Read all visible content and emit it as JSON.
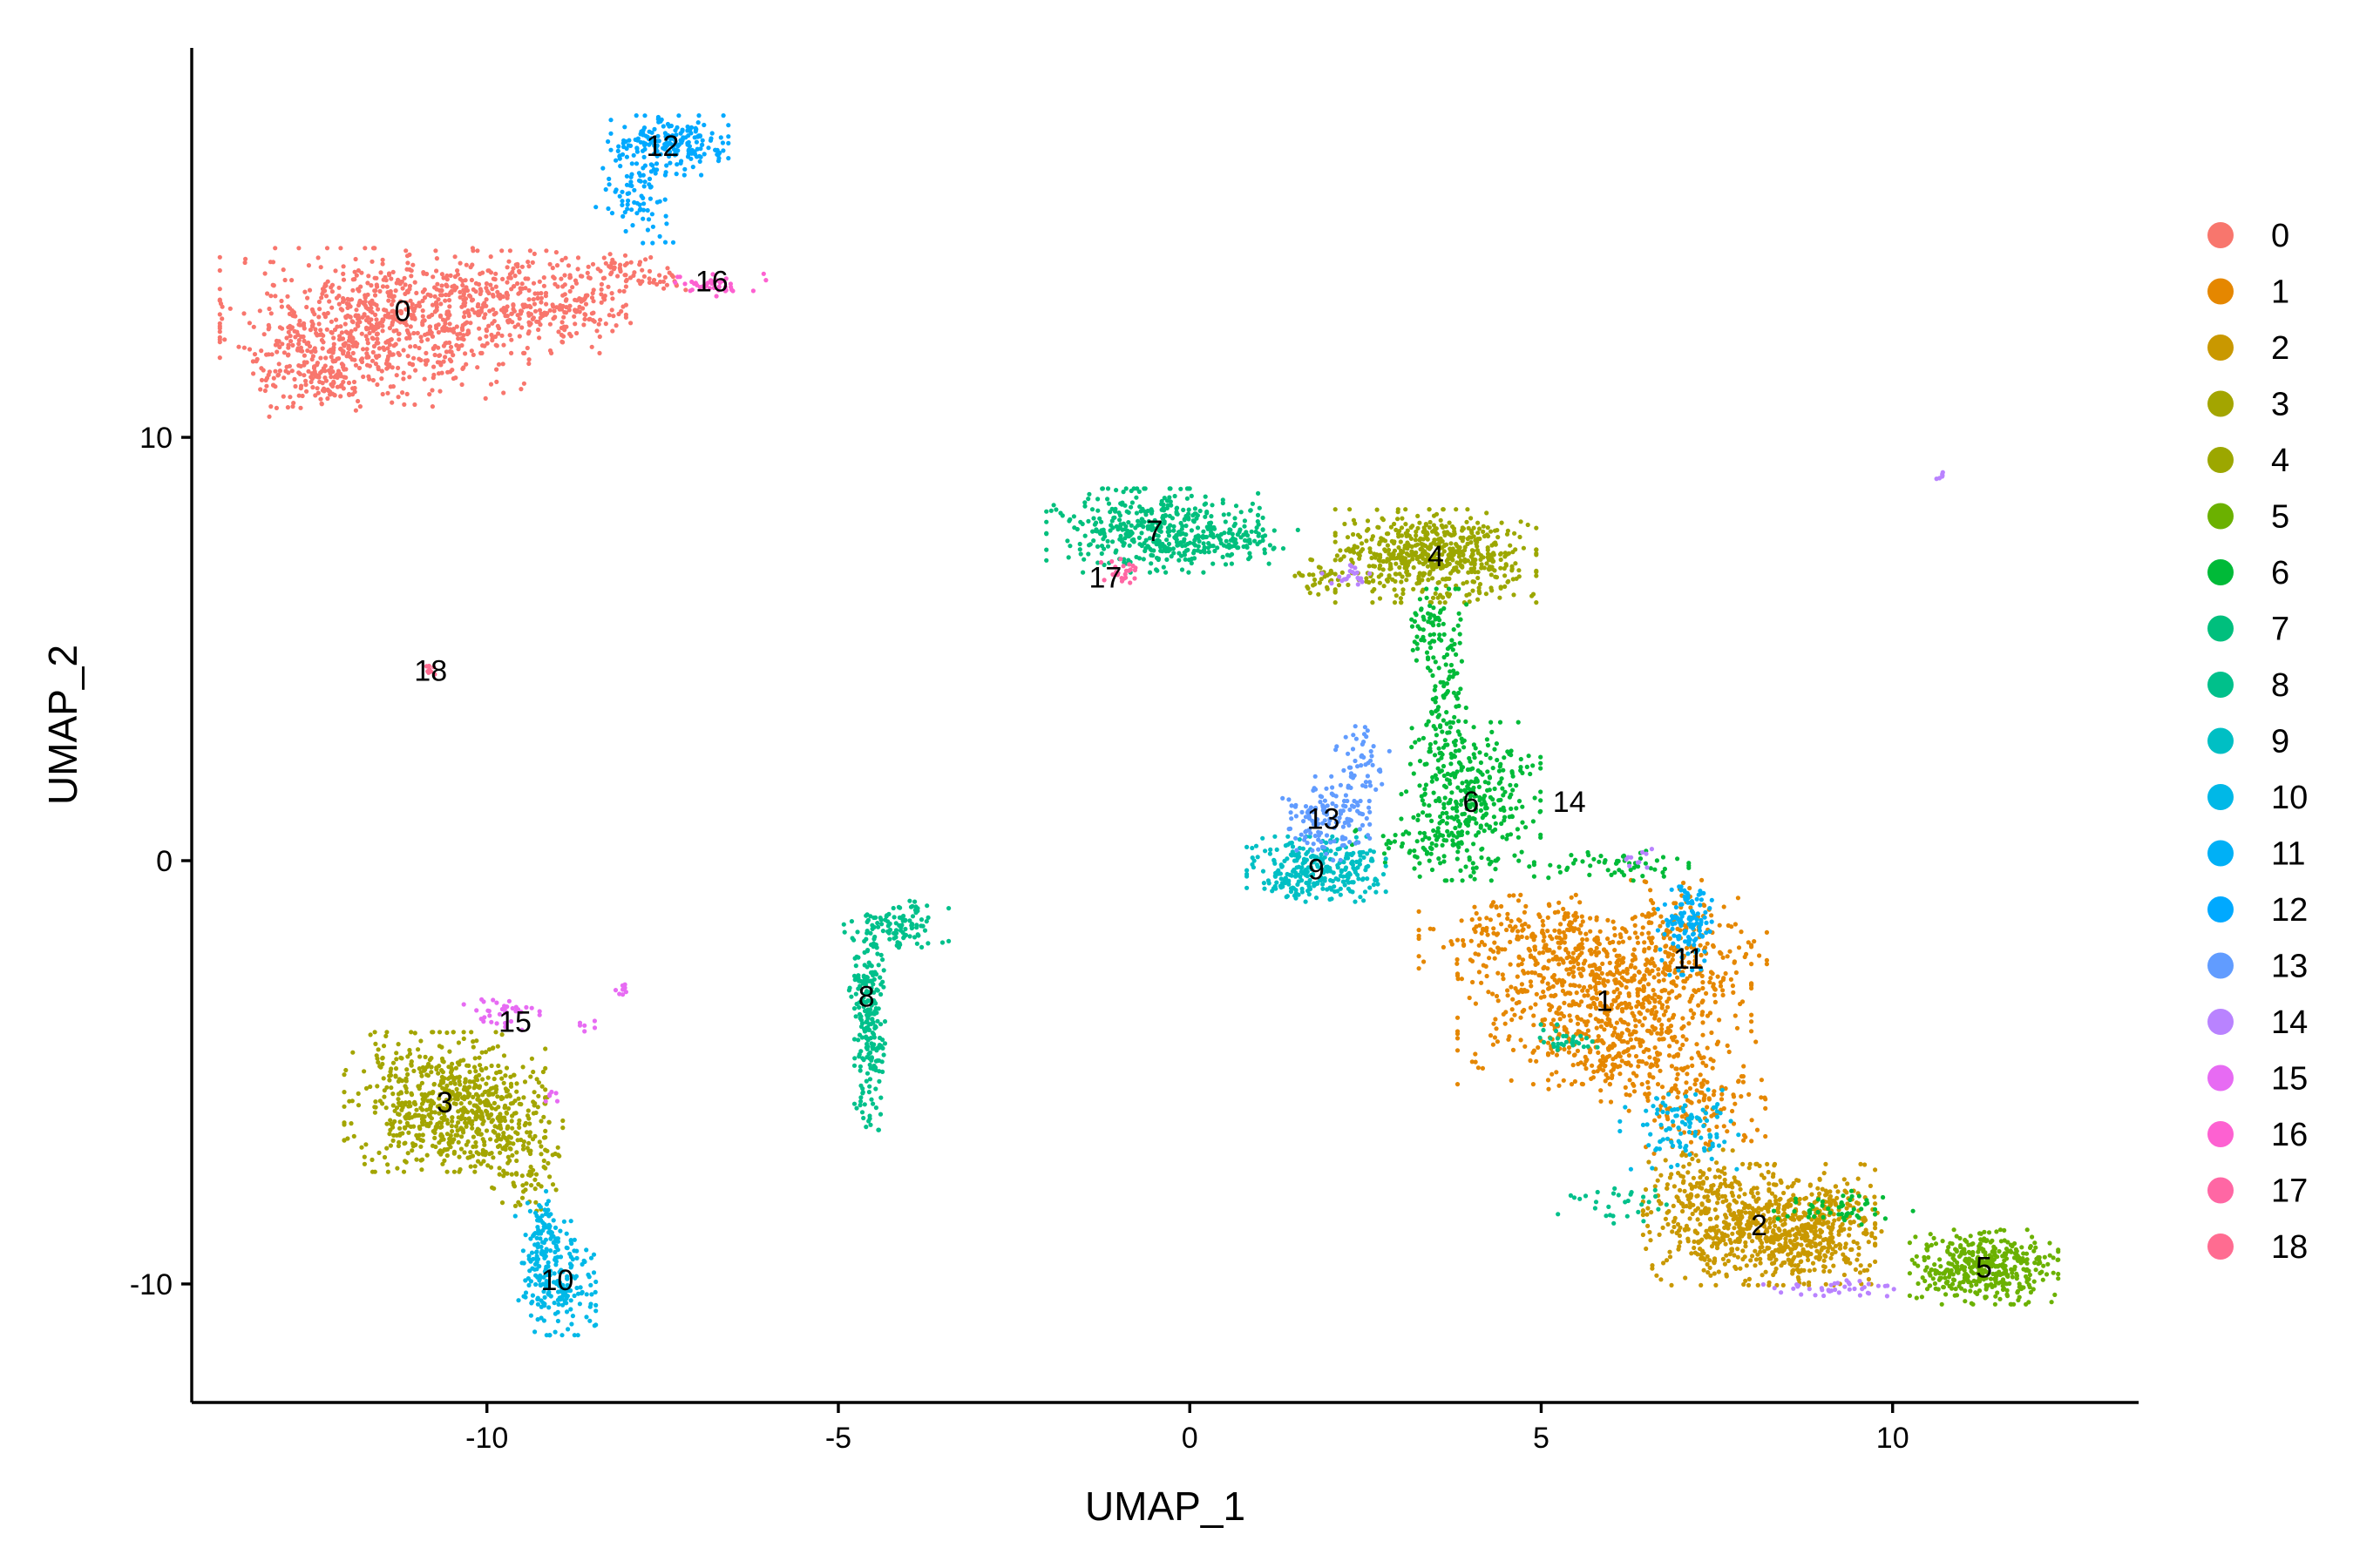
{
  "chart_data": {
    "type": "scatter",
    "title": "",
    "xlabel": "UMAP_1",
    "ylabel": "UMAP_2",
    "xlim": [
      -14.2,
      13.5
    ],
    "ylim": [
      -12.8,
      19.2
    ],
    "xticks": [
      -10,
      -5,
      0,
      5,
      10
    ],
    "yticks": [
      -10,
      0,
      10
    ],
    "grid": false,
    "legend_position": "right",
    "series": [
      {
        "name": "0",
        "color": "#F8766D",
        "label_pos": [
          -11.2,
          13.0
        ],
        "blobs": [
          [
            -11.6,
            12.6,
            1.0,
            0.85,
            650
          ],
          [
            -12.4,
            11.7,
            0.45,
            0.55,
            150
          ],
          [
            -10.0,
            13.2,
            0.9,
            0.55,
            320
          ],
          [
            -9.0,
            13.1,
            0.5,
            0.45,
            120
          ],
          [
            -8.2,
            14.0,
            0.35,
            0.15,
            40
          ],
          [
            -7.6,
            13.7,
            0.3,
            0.12,
            30
          ]
        ]
      },
      {
        "name": "1",
        "color": "#E58700",
        "label_pos": [
          5.9,
          -3.3
        ],
        "blobs": [
          [
            5.9,
            -3.3,
            0.95,
            0.9,
            650
          ],
          [
            4.8,
            -1.8,
            0.7,
            0.45,
            200
          ],
          [
            7.0,
            -2.0,
            0.55,
            0.7,
            180
          ],
          [
            7.2,
            -5.6,
            0.45,
            0.6,
            150
          ],
          [
            6.2,
            -4.6,
            0.5,
            0.5,
            120
          ]
        ]
      },
      {
        "name": "2",
        "color": "#C99800",
        "label_pos": [
          8.1,
          -8.6
        ],
        "blobs": [
          [
            8.1,
            -8.6,
            0.75,
            0.65,
            650
          ],
          [
            8.9,
            -8.9,
            0.5,
            0.5,
            200
          ],
          [
            7.3,
            -7.6,
            0.35,
            0.35,
            80
          ]
        ]
      },
      {
        "name": "3",
        "color": "#A3A500",
        "label_pos": [
          -10.6,
          -5.7
        ],
        "blobs": [
          [
            -10.6,
            -5.7,
            0.65,
            0.75,
            600
          ],
          [
            -9.8,
            -6.2,
            0.4,
            0.55,
            150
          ],
          [
            -9.5,
            -7.5,
            0.25,
            0.4,
            50
          ]
        ]
      },
      {
        "name": "4",
        "color": "#9CA700",
        "label_pos": [
          3.5,
          7.2
        ],
        "blobs": [
          [
            3.5,
            7.2,
            0.65,
            0.5,
            600
          ],
          [
            1.9,
            6.7,
            0.22,
            0.22,
            40
          ]
        ]
      },
      {
        "name": "5",
        "color": "#6BB100",
        "label_pos": [
          11.3,
          -9.6
        ],
        "blobs": [
          [
            11.3,
            -9.6,
            0.48,
            0.4,
            420
          ]
        ]
      },
      {
        "name": "6",
        "color": "#00BA38",
        "label_pos": [
          4.0,
          1.4
        ],
        "blobs": [
          [
            4.0,
            1.4,
            0.45,
            0.85,
            320
          ],
          [
            3.6,
            4.0,
            0.2,
            1.1,
            120
          ],
          [
            3.3,
            0.3,
            0.45,
            0.35,
            70
          ],
          [
            6.0,
            -0.1,
            0.5,
            0.2,
            60
          ],
          [
            9.3,
            -8.2,
            0.45,
            0.18,
            50
          ],
          [
            3.4,
            5.5,
            0.18,
            0.4,
            40
          ]
        ]
      },
      {
        "name": "7",
        "color": "#00BF7D",
        "label_pos": [
          -0.5,
          7.8
        ],
        "blobs": [
          [
            -0.5,
            7.8,
            0.7,
            0.45,
            420
          ],
          [
            0.8,
            7.5,
            0.35,
            0.22,
            60
          ]
        ]
      },
      {
        "name": "8",
        "color": "#00C08B",
        "label_pos": [
          -4.6,
          -3.2
        ],
        "blobs": [
          [
            -4.55,
            -4.6,
            0.1,
            0.8,
            120
          ],
          [
            -4.6,
            -3.0,
            0.12,
            0.6,
            100
          ],
          [
            -4.2,
            -1.5,
            0.35,
            0.25,
            110
          ],
          [
            5.3,
            -4.2,
            0.25,
            0.15,
            30
          ],
          [
            6.1,
            -8.2,
            0.45,
            0.25,
            30
          ]
        ]
      },
      {
        "name": "9",
        "color": "#00BFC4",
        "label_pos": [
          1.8,
          -0.2
        ],
        "blobs": [
          [
            1.8,
            -0.2,
            0.45,
            0.35,
            300
          ]
        ]
      },
      {
        "name": "10",
        "color": "#00B8E7",
        "label_pos": [
          -9.0,
          -9.9
        ],
        "blobs": [
          [
            -9.0,
            -10.0,
            0.25,
            0.55,
            200
          ],
          [
            -9.2,
            -8.8,
            0.18,
            0.45,
            80
          ],
          [
            7.0,
            -6.3,
            0.4,
            0.45,
            100
          ]
        ]
      },
      {
        "name": "11",
        "color": "#00B0F6",
        "label_pos": [
          7.1,
          -2.3
        ],
        "blobs": [
          [
            7.1,
            -1.6,
            0.2,
            0.5,
            120
          ]
        ]
      },
      {
        "name": "12",
        "color": "#00A9FF",
        "label_pos": [
          -7.5,
          16.9
        ],
        "blobs": [
          [
            -7.4,
            16.9,
            0.38,
            0.32,
            200
          ],
          [
            -7.9,
            15.8,
            0.25,
            0.55,
            80
          ]
        ]
      },
      {
        "name": "13",
        "color": "#619CFF",
        "label_pos": [
          1.9,
          1.0
        ],
        "blobs": [
          [
            1.9,
            1.0,
            0.3,
            0.45,
            140
          ],
          [
            2.4,
            2.4,
            0.2,
            0.45,
            50
          ]
        ]
      },
      {
        "name": "14",
        "color": "#B983FF",
        "label_pos": [
          5.4,
          1.4
        ],
        "blobs": [
          [
            10.7,
            9.1,
            0.05,
            0.05,
            6
          ],
          [
            2.3,
            6.7,
            0.2,
            0.15,
            20
          ],
          [
            9.2,
            -10.1,
            0.5,
            0.1,
            40
          ],
          [
            6.4,
            0.3,
            0.15,
            0.25,
            10
          ]
        ]
      },
      {
        "name": "15",
        "color": "#E76BF3",
        "label_pos": [
          -9.6,
          -3.8
        ],
        "blobs": [
          [
            -9.8,
            -3.6,
            0.25,
            0.2,
            35
          ],
          [
            -8.1,
            -3.0,
            0.08,
            0.08,
            8
          ],
          [
            -8.5,
            -3.9,
            0.08,
            0.06,
            6
          ],
          [
            -9.1,
            -5.6,
            0.08,
            0.1,
            6
          ]
        ]
      },
      {
        "name": "16",
        "color": "#FD61D1",
        "label_pos": [
          -6.8,
          13.7
        ],
        "blobs": [
          [
            -6.8,
            13.6,
            0.35,
            0.12,
            40
          ]
        ]
      },
      {
        "name": "17",
        "color": "#FF67A4",
        "label_pos": [
          -1.2,
          6.7
        ],
        "blobs": [
          [
            -1.0,
            6.8,
            0.15,
            0.15,
            25
          ]
        ]
      },
      {
        "name": "18",
        "color": "#FF6C91",
        "label_pos": [
          -10.8,
          4.5
        ],
        "blobs": [
          [
            -10.8,
            4.55,
            0.07,
            0.08,
            8
          ]
        ]
      }
    ]
  }
}
